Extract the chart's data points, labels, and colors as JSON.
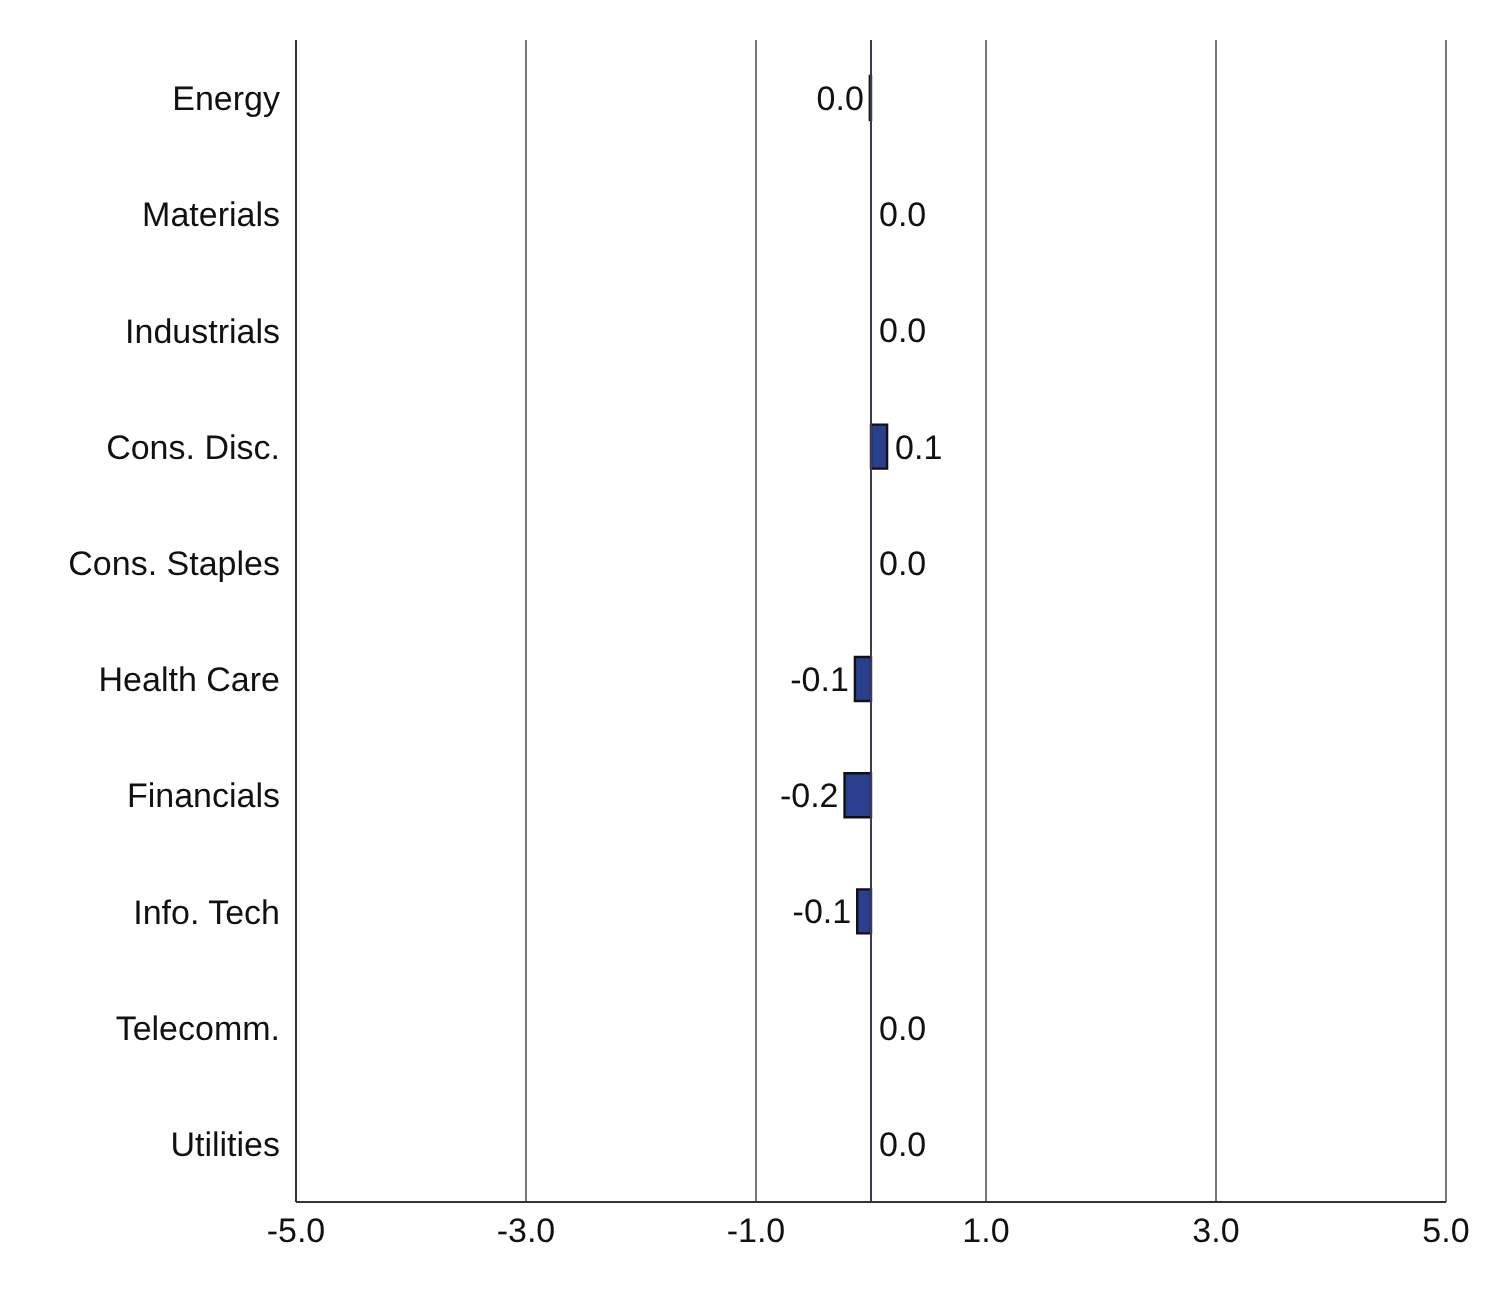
{
  "chart_data": {
    "type": "bar",
    "orientation": "horizontal",
    "categories": [
      "Energy",
      "Materials",
      "Industrials",
      "Cons. Disc.",
      "Cons. Staples",
      "Health Care",
      "Financials",
      "Info. Tech",
      "Telecomm.",
      "Utilities"
    ],
    "values": [
      -0.01,
      0,
      0,
      0.14,
      0,
      -0.14,
      -0.23,
      -0.12,
      0,
      0
    ],
    "value_labels": [
      "0.0",
      "0.0",
      "0.0",
      "0.1",
      "0.0",
      "-0.1",
      "-0.2",
      "-0.1",
      "0.0",
      "0.0"
    ],
    "color": "#2b3f8f",
    "xlim": [
      -5,
      5
    ],
    "xticks": [
      {
        "value": -5,
        "label": "-5.0"
      },
      {
        "value": -3,
        "label": "-3.0"
      },
      {
        "value": -1,
        "label": "-1.0"
      },
      {
        "value": 1,
        "label": "1.0"
      },
      {
        "value": 3,
        "label": "3.0"
      },
      {
        "value": 5,
        "label": "5.0"
      }
    ],
    "grid": "x",
    "ref_lines": [
      {
        "axis": "x",
        "value": 0,
        "color": "#3a3a5a"
      }
    ]
  }
}
